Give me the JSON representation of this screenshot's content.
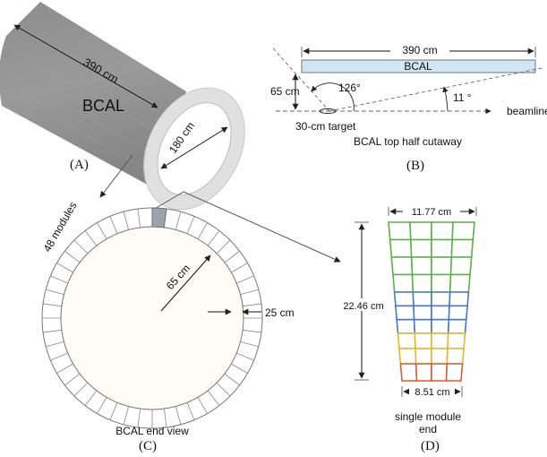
{
  "panel_a": {
    "length": "390 cm",
    "name": "BCAL",
    "diameter": "180 cm",
    "caption": "(A)"
  },
  "panel_b": {
    "length": "390 cm",
    "name": "BCAL",
    "height": "65 cm",
    "angle_back": "126°",
    "angle_fwd": "11 °",
    "beamline": "beamline",
    "target": "30-cm target",
    "subtitle": "BCAL  top half cutaway",
    "caption": "(B)"
  },
  "panel_c": {
    "modules": "48 modules",
    "radius": "65 cm",
    "thickness": "25 cm",
    "subtitle": "BCAL end view",
    "caption": "(C)",
    "module_count": 48
  },
  "panel_d": {
    "top_width": "11.77 cm",
    "height": "22.46 cm",
    "bottom_width": "8.51 cm",
    "subtitle_line1": "single module",
    "subtitle_line2": "end",
    "caption": "(D)",
    "layer_colors": [
      "#5cb04a",
      "#4a78c0",
      "#e0b830",
      "#d4603a"
    ]
  }
}
